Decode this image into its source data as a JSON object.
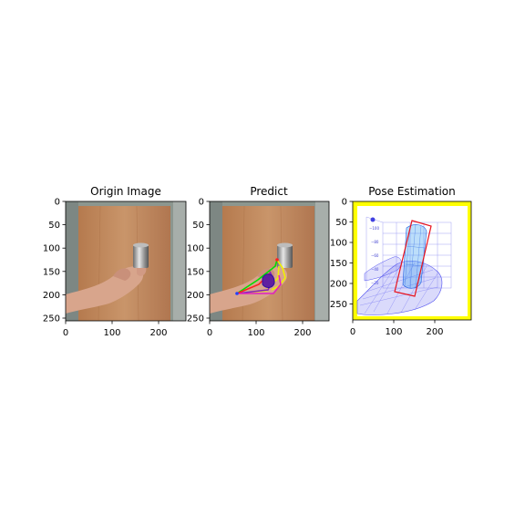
{
  "panels": [
    {
      "title": "Origin Image",
      "xticks": [
        "0",
        "100",
        "200"
      ],
      "yticks": [
        "0",
        "50",
        "100",
        "150",
        "200",
        "250"
      ]
    },
    {
      "title": "Predict",
      "xticks": [
        "0",
        "100",
        "200"
      ],
      "yticks": [
        "0",
        "50",
        "100",
        "150",
        "200",
        "250"
      ]
    },
    {
      "title": "Pose Estimation",
      "xticks": [
        "0",
        "100",
        "200"
      ],
      "yticks": [
        "0",
        "50",
        "100",
        "150",
        "200",
        "250"
      ]
    }
  ],
  "colors": {
    "wood": "#c18a5e",
    "background_wall": "#8f9a92",
    "skin": "#d9a48c",
    "frame_yellow": "#ffff00",
    "bbox_red": "#e8141e",
    "mesh_blue": "#5050f0",
    "keypoint_green": "#00e000",
    "keypoint_yellow": "#f0f000",
    "keypoint_purple": "#8020c0",
    "keypoint_magenta": "#e020c0",
    "keypoint_red": "#ff2020"
  }
}
